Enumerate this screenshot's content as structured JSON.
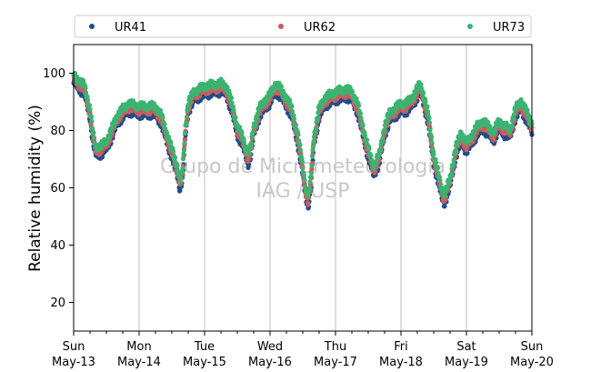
{
  "chart_data": {
    "type": "scatter",
    "ylabel": "Relative humidity (%)",
    "xlabel": "",
    "xlim": [
      "2018-05-13 00:00",
      "2018-05-20 00:00"
    ],
    "ylim": [
      10,
      110
    ],
    "yticks": [
      20,
      40,
      60,
      80,
      100
    ],
    "xticks": [
      {
        "day": "Sun",
        "date": "May-13"
      },
      {
        "day": "Mon",
        "date": "May-14"
      },
      {
        "day": "Tue",
        "date": "May-15"
      },
      {
        "day": "Wed",
        "date": "May-16"
      },
      {
        "day": "Thu",
        "date": "May-17"
      },
      {
        "day": "Fri",
        "date": "May-18"
      },
      {
        "day": "Sat",
        "date": "May-19"
      },
      {
        "day": "Sun",
        "date": "May-20"
      }
    ],
    "grid": "vertical",
    "legend_position": "top",
    "watermark": [
      "Grupo de Micrometeorologia",
      "IAG / USP"
    ],
    "series": [
      {
        "name": "UR41",
        "color": "#1f4e8c",
        "offset": -1.5
      },
      {
        "name": "UR62",
        "color": "#cd5c5c",
        "offset": 0
      },
      {
        "name": "UR73",
        "color": "#3cb371",
        "offset": 1.5
      }
    ],
    "base_curve": [
      [
        "2018-05-13 00:00",
        98
      ],
      [
        "2018-05-13 02:00",
        96
      ],
      [
        "2018-05-13 04:00",
        94
      ],
      [
        "2018-05-13 06:00",
        86
      ],
      [
        "2018-05-13 07:00",
        78
      ],
      [
        "2018-05-13 08:00",
        73
      ],
      [
        "2018-05-13 10:00",
        73
      ],
      [
        "2018-05-13 12:00",
        75
      ],
      [
        "2018-05-13 14:00",
        79
      ],
      [
        "2018-05-13 16:00",
        84
      ],
      [
        "2018-05-13 18:00",
        86
      ],
      [
        "2018-05-13 20:00",
        88
      ],
      [
        "2018-05-14 00:00",
        87
      ],
      [
        "2018-05-14 04:00",
        87
      ],
      [
        "2018-05-14 06:00",
        87
      ],
      [
        "2018-05-14 08:00",
        84
      ],
      [
        "2018-05-14 10:00",
        78
      ],
      [
        "2018-05-14 12:00",
        72
      ],
      [
        "2018-05-14 14:00",
        66
      ],
      [
        "2018-05-14 15:00",
        61
      ],
      [
        "2018-05-14 16:00",
        65
      ],
      [
        "2018-05-14 17:00",
        80
      ],
      [
        "2018-05-14 18:00",
        88
      ],
      [
        "2018-05-14 20:00",
        92
      ],
      [
        "2018-05-15 00:00",
        94
      ],
      [
        "2018-05-15 06:00",
        95
      ],
      [
        "2018-05-15 08:00",
        94
      ],
      [
        "2018-05-15 10:00",
        88
      ],
      [
        "2018-05-15 12:00",
        80
      ],
      [
        "2018-05-15 14:00",
        76
      ],
      [
        "2018-05-15 16:00",
        70
      ],
      [
        "2018-05-15 17:00",
        73
      ],
      [
        "2018-05-15 18:00",
        80
      ],
      [
        "2018-05-15 20:00",
        86
      ],
      [
        "2018-05-15 22:00",
        89
      ],
      [
        "2018-05-16 00:00",
        91
      ],
      [
        "2018-05-16 02:00",
        95
      ],
      [
        "2018-05-16 04:00",
        93
      ],
      [
        "2018-05-16 06:00",
        90
      ],
      [
        "2018-05-16 08:00",
        86
      ],
      [
        "2018-05-16 10:00",
        78
      ],
      [
        "2018-05-16 12:00",
        66
      ],
      [
        "2018-05-16 13:00",
        59
      ],
      [
        "2018-05-16 14:00",
        55
      ],
      [
        "2018-05-16 15:00",
        62
      ],
      [
        "2018-05-16 16:00",
        76
      ],
      [
        "2018-05-16 18:00",
        86
      ],
      [
        "2018-05-16 20:00",
        90
      ],
      [
        "2018-05-17 00:00",
        92
      ],
      [
        "2018-05-17 04:00",
        93
      ],
      [
        "2018-05-17 06:00",
        92
      ],
      [
        "2018-05-17 08:00",
        88
      ],
      [
        "2018-05-17 10:00",
        80
      ],
      [
        "2018-05-17 12:00",
        72
      ],
      [
        "2018-05-17 14:00",
        66
      ],
      [
        "2018-05-17 16:00",
        70
      ],
      [
        "2018-05-17 18:00",
        80
      ],
      [
        "2018-05-17 20:00",
        85
      ],
      [
        "2018-05-18 00:00",
        88
      ],
      [
        "2018-05-18 02:00",
        88
      ],
      [
        "2018-05-18 04:00",
        90
      ],
      [
        "2018-05-18 06:00",
        93
      ],
      [
        "2018-05-18 07:00",
        95
      ],
      [
        "2018-05-18 08:00",
        92
      ],
      [
        "2018-05-18 10:00",
        84
      ],
      [
        "2018-05-18 12:00",
        70
      ],
      [
        "2018-05-18 14:00",
        62
      ],
      [
        "2018-05-18 15:00",
        58
      ],
      [
        "2018-05-18 16:00",
        56
      ],
      [
        "2018-05-18 18:00",
        62
      ],
      [
        "2018-05-18 20:00",
        72
      ],
      [
        "2018-05-18 22:00",
        78
      ],
      [
        "2018-05-19 00:00",
        74
      ],
      [
        "2018-05-19 02:00",
        77
      ],
      [
        "2018-05-19 04:00",
        80
      ],
      [
        "2018-05-19 06:00",
        82
      ],
      [
        "2018-05-19 08:00",
        80
      ],
      [
        "2018-05-19 10:00",
        78
      ],
      [
        "2018-05-19 12:00",
        82
      ],
      [
        "2018-05-19 14:00",
        80
      ],
      [
        "2018-05-19 16:00",
        79
      ],
      [
        "2018-05-19 18:00",
        86
      ],
      [
        "2018-05-19 20:00",
        89
      ],
      [
        "2018-05-19 22:00",
        85
      ],
      [
        "2018-05-20 00:00",
        81
      ]
    ]
  }
}
